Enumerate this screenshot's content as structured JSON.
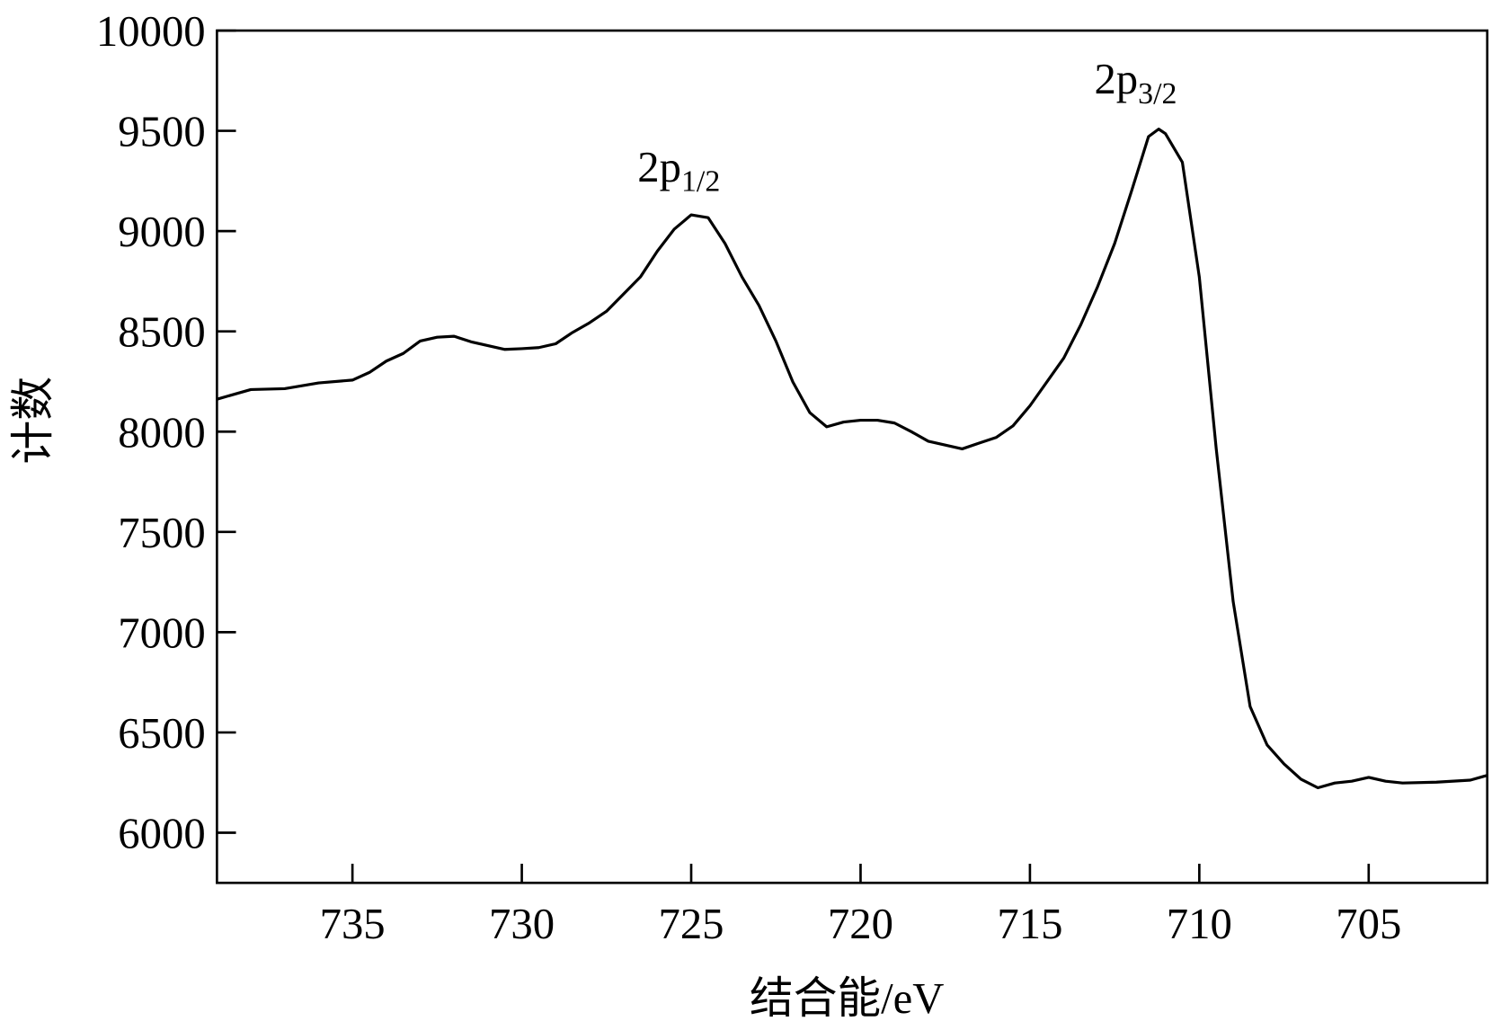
{
  "chart_data": {
    "type": "line",
    "x_label": "结合能/eV",
    "y_label": "计数",
    "xlim": [
      739,
      701.5
    ],
    "ylim": [
      5750,
      10000
    ],
    "xticks": [
      735,
      730,
      725,
      720,
      715,
      710,
      705
    ],
    "yticks": [
      6000,
      6500,
      7000,
      7500,
      8000,
      8500,
      9000,
      9500,
      10000
    ],
    "annotations": [
      {
        "text": "2p",
        "subscript": "1/2"
      },
      {
        "text": "2p",
        "subscript": "3/2"
      }
    ],
    "series": [
      {
        "color": "#000000",
        "x": [
          739,
          738,
          737,
          736,
          735,
          734.5,
          734,
          733.5,
          733,
          732.5,
          732,
          731.5,
          731,
          730.5,
          730,
          729.5,
          729,
          728.5,
          728,
          727.5,
          727,
          726.5,
          726,
          725.5,
          725,
          724.5,
          724,
          723.5,
          723,
          722.5,
          722,
          721.5,
          721,
          720.5,
          720,
          719.5,
          719,
          718.5,
          718,
          717.5,
          717,
          716.5,
          716,
          715.5,
          715,
          714.5,
          714,
          713.5,
          713,
          712.5,
          712,
          711.5,
          711.2,
          711,
          710.5,
          710,
          709.5,
          709,
          708.5,
          708,
          707.5,
          707,
          706.5,
          706,
          705.5,
          705,
          704.5,
          704,
          703,
          702,
          701.5
        ],
        "values": [
          8162,
          8210,
          8214,
          8243,
          8257,
          8295,
          8352,
          8390,
          8452,
          8471,
          8476,
          8448,
          8429,
          8410,
          8414,
          8419,
          8438,
          8495,
          8543,
          8600,
          8686,
          8771,
          8900,
          9010,
          9081,
          9067,
          8938,
          8771,
          8629,
          8452,
          8248,
          8095,
          8024,
          8048,
          8057,
          8057,
          8043,
          8000,
          7952,
          7933,
          7914,
          7943,
          7971,
          8029,
          8129,
          8248,
          8367,
          8533,
          8724,
          8938,
          9200,
          9471,
          9509,
          9486,
          9343,
          8771,
          7914,
          7152,
          6629,
          6438,
          6343,
          6267,
          6224,
          6248,
          6257,
          6276,
          6257,
          6248,
          6252,
          6262,
          6286
        ]
      }
    ]
  }
}
